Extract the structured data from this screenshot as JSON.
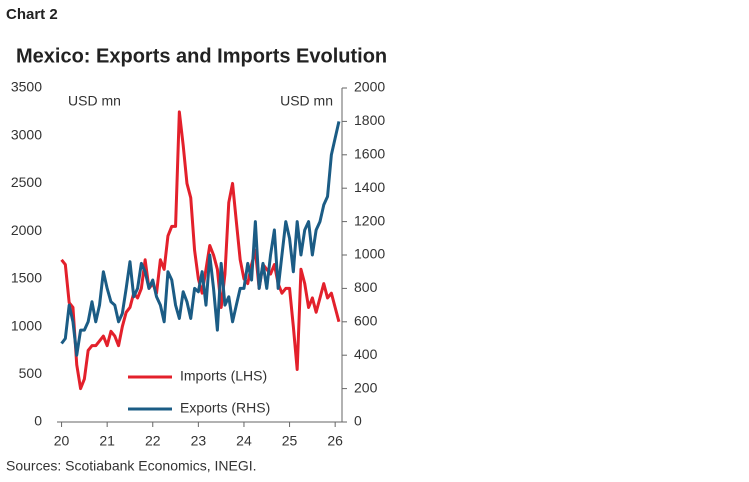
{
  "chart_data": {
    "type": "line",
    "chart_label": "Chart 2",
    "title": "Mexico: Exports and Imports Evolution",
    "ylabel": "USD mn",
    "y2label": "USD mn",
    "source": "Sources: Scotiabank Economics, INEGI.",
    "legend": "bottom",
    "xlim": [
      19.9,
      26.15
    ],
    "xticks": [
      20,
      21,
      22,
      23,
      24,
      25,
      26
    ],
    "ylim": [
      0,
      3500
    ],
    "yticks": [
      0,
      500,
      1000,
      1500,
      2000,
      2500,
      3000,
      3500
    ],
    "y2lim": [
      0,
      2000
    ],
    "y2ticks": [
      0,
      200,
      400,
      600,
      800,
      1000,
      1200,
      1400,
      1600,
      1800,
      2000
    ],
    "x": [
      20,
      20.083,
      20.167,
      20.25,
      20.333,
      20.417,
      20.5,
      20.583,
      20.667,
      20.75,
      20.833,
      20.917,
      21,
      21.083,
      21.167,
      21.25,
      21.333,
      21.417,
      21.5,
      21.583,
      21.667,
      21.75,
      21.833,
      21.917,
      22,
      22.083,
      22.167,
      22.25,
      22.333,
      22.417,
      22.5,
      22.583,
      22.667,
      22.75,
      22.833,
      22.917,
      23,
      23.083,
      23.167,
      23.25,
      23.333,
      23.417,
      23.5,
      23.583,
      23.667,
      23.75,
      23.833,
      23.917,
      24,
      24.083,
      24.167,
      24.25,
      24.333,
      24.417,
      24.5,
      24.583,
      24.667,
      24.75,
      24.833,
      24.917,
      25,
      25.083,
      25.167,
      25.25,
      25.333,
      25.417,
      25.5,
      25.583,
      25.667,
      25.75,
      25.833,
      25.917,
      26,
      26.083
    ],
    "series": [
      {
        "name": "Imports (LHS)",
        "color": "#e3202b",
        "axis": "y",
        "values": [
          1700,
          1650,
          1250,
          1200,
          600,
          350,
          450,
          750,
          800,
          800,
          850,
          900,
          800,
          950,
          900,
          800,
          1000,
          1150,
          1200,
          1350,
          1300,
          1400,
          1700,
          1400,
          1450,
          1350,
          1700,
          1600,
          1950,
          2050,
          2050,
          3250,
          2900,
          2500,
          2350,
          1800,
          1500,
          1350,
          1600,
          1850,
          1750,
          1600,
          1200,
          1550,
          2300,
          2500,
          2100,
          1700,
          1500,
          1450,
          1650,
          1800,
          1400,
          1650,
          1600,
          1550,
          1650,
          1450,
          1350,
          1400,
          1400,
          1000,
          550,
          1600,
          1450,
          1200,
          1300,
          1150,
          1300,
          1450,
          1300,
          1350,
          1200,
          1050
        ]
      },
      {
        "name": "Exports (RHS)",
        "color": "#1b5c85",
        "axis": "y2",
        "values": [
          470,
          500,
          700,
          600,
          400,
          550,
          550,
          600,
          720,
          600,
          700,
          900,
          800,
          720,
          700,
          600,
          650,
          800,
          960,
          750,
          800,
          950,
          900,
          800,
          850,
          750,
          700,
          600,
          900,
          850,
          700,
          620,
          780,
          720,
          620,
          800,
          780,
          900,
          700,
          1000,
          800,
          550,
          950,
          700,
          750,
          600,
          700,
          800,
          800,
          950,
          850,
          1200,
          800,
          950,
          800,
          1000,
          1150,
          800,
          1000,
          1200,
          1100,
          900,
          1200,
          1000,
          1150,
          1200,
          1000,
          1150,
          1200,
          1300,
          1350,
          1600,
          1700,
          1800
        ]
      }
    ]
  }
}
